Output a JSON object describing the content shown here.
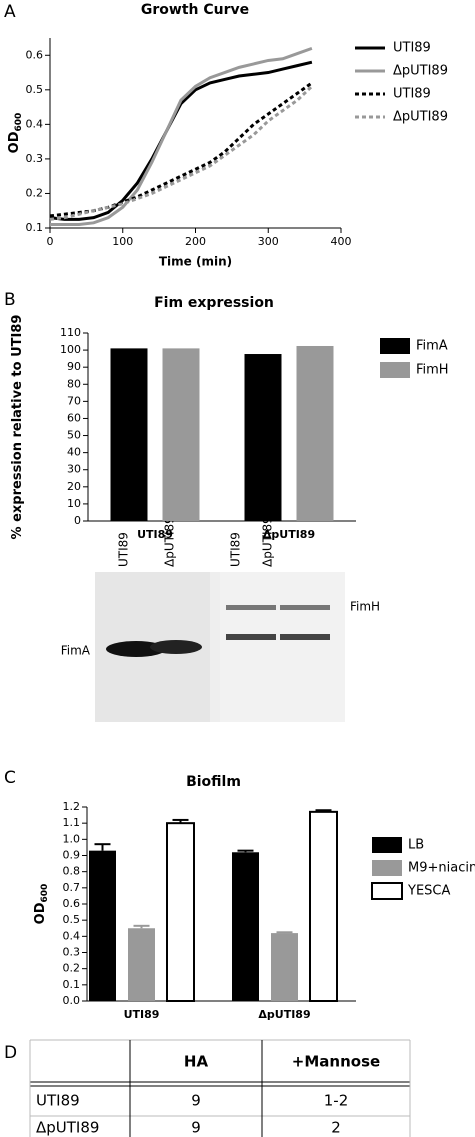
{
  "panel_labels": [
    "A",
    "B",
    "C",
    "D"
  ],
  "chart_data": [
    {
      "type": "line",
      "title": "Growth Curve",
      "x_label": "Time (min)",
      "y_label": "OD",
      "y_label_subscript": "600",
      "x": [
        0,
        20,
        40,
        60,
        80,
        100,
        120,
        140,
        160,
        180,
        200,
        220,
        240,
        260,
        280,
        300,
        320,
        340,
        360
      ],
      "series": [
        {
          "name": "UTI89",
          "color": "#000000",
          "dashed": false,
          "values": [
            0.13,
            0.125,
            0.125,
            0.13,
            0.145,
            0.18,
            0.23,
            0.3,
            0.38,
            0.46,
            0.5,
            0.52,
            0.53,
            0.54,
            0.545,
            0.55,
            0.56,
            0.57,
            0.58
          ]
        },
        {
          "name": "ΔpUTI89",
          "color": "#999999",
          "dashed": false,
          "values": [
            0.11,
            0.11,
            0.11,
            0.115,
            0.13,
            0.16,
            0.21,
            0.29,
            0.38,
            0.47,
            0.51,
            0.535,
            0.55,
            0.565,
            0.575,
            0.585,
            0.59,
            0.605,
            0.62
          ]
        },
        {
          "name": "UTI89",
          "color": "#000000",
          "dashed": true,
          "values": [
            0.135,
            0.14,
            0.145,
            0.15,
            0.16,
            0.175,
            0.19,
            0.21,
            0.23,
            0.25,
            0.27,
            0.29,
            0.32,
            0.36,
            0.4,
            0.43,
            0.46,
            0.49,
            0.52
          ]
        },
        {
          "name": "ΔpUTI89",
          "color": "#999999",
          "dashed": true,
          "values": [
            0.125,
            0.13,
            0.14,
            0.15,
            0.16,
            0.17,
            0.185,
            0.2,
            0.22,
            0.24,
            0.26,
            0.28,
            0.31,
            0.34,
            0.37,
            0.41,
            0.44,
            0.47,
            0.51
          ]
        }
      ],
      "xlim": [
        0,
        400
      ],
      "xticks": [
        0,
        100,
        200,
        300,
        400
      ],
      "ylim": [
        0.1,
        0.65
      ],
      "yticks": [
        0.1,
        0.2,
        0.3,
        0.4,
        0.5,
        0.6
      ]
    },
    {
      "type": "bar",
      "title": "Fim expression",
      "y_label": "% expression relative to UTI89",
      "categories": [
        "UTI89",
        "ΔpUTI89"
      ],
      "series": [
        {
          "name": "FimA",
          "color": "#000000",
          "values": [
            101,
            97.7
          ]
        },
        {
          "name": "FimH",
          "color": "#999999",
          "values": [
            101,
            102.4
          ]
        }
      ],
      "ylim": [
        0,
        110
      ],
      "yticks": [
        0,
        10,
        20,
        30,
        40,
        50,
        60,
        70,
        80,
        90,
        100,
        110
      ]
    },
    {
      "type": "bar",
      "title": "Biofilm",
      "y_label": "OD",
      "y_label_subscript": "600",
      "categories": [
        "UTI89",
        "ΔpUTI89"
      ],
      "series": [
        {
          "name": "LB",
          "color": "#000000",
          "values": [
            0.93,
            0.92
          ],
          "errors": [
            0.04,
            0.01
          ]
        },
        {
          "name": "M9+niacin",
          "color": "#999999",
          "values": [
            0.45,
            0.42
          ],
          "errors": [
            0.015,
            0.005
          ]
        },
        {
          "name": "YESCA",
          "color": "#ffffff",
          "values": [
            1.1,
            1.17
          ],
          "errors": [
            0.02,
            0.01
          ]
        }
      ],
      "ylim": [
        0,
        1.2
      ],
      "yticks": [
        {
          "value": 0,
          "label": "0.0"
        },
        0.1,
        0.2,
        0.3,
        0.4,
        0.5,
        0.6,
        0.7,
        0.8,
        0.9,
        {
          "value": 1,
          "label": "1.0"
        },
        1.1,
        1.2
      ]
    }
  ],
  "blot": {
    "lanes_left": [
      "UTI89",
      "ΔpUTI89"
    ],
    "lanes_right": [
      "UTI89",
      "ΔpUTI89"
    ],
    "left_label": "FimA",
    "right_label": "FimH"
  },
  "table": {
    "columns": [
      "HA",
      "+Mannose"
    ],
    "rows": [
      [
        "UTI89",
        9,
        "1-2"
      ],
      [
        "ΔpUTI89",
        9,
        "2"
      ]
    ]
  }
}
